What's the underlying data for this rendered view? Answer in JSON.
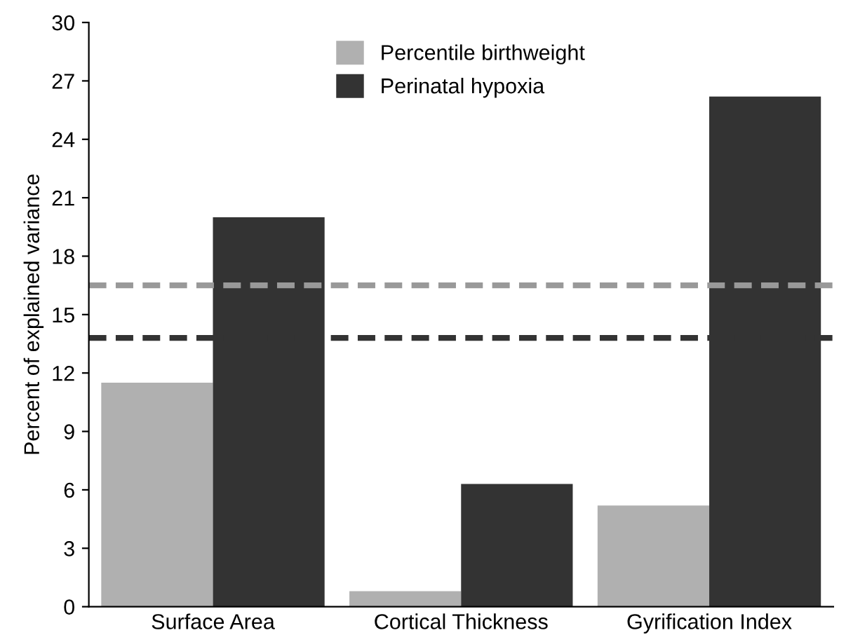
{
  "chart_data": {
    "type": "bar",
    "ylabel": "Percent of explained variance",
    "categories": [
      "Surface Area",
      "Cortical Thickness",
      "Gyrification Index"
    ],
    "series": [
      {
        "name": "Percentile birthweight",
        "color": "#b0b0b0",
        "values": [
          11.5,
          0.8,
          5.2
        ]
      },
      {
        "name": "Perinatal hypoxia",
        "color": "#333333",
        "values": [
          20.0,
          6.3,
          26.2
        ]
      }
    ],
    "ylim": [
      0,
      30
    ],
    "yticks": [
      0,
      3,
      6,
      9,
      12,
      15,
      18,
      21,
      24,
      27,
      30
    ],
    "ref_lines": [
      {
        "axis": "y",
        "value": 16.5,
        "color": "#999999",
        "line_style": "dashed"
      },
      {
        "axis": "y",
        "value": 13.8,
        "color": "#333333",
        "line_style": "dashed"
      }
    ],
    "grid": false,
    "legend": "top"
  }
}
